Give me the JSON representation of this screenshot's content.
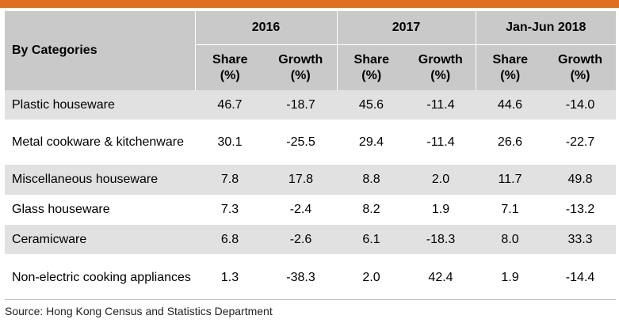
{
  "colors": {
    "accent": "#e07020",
    "header_bg": "#c9c9c9",
    "row_shade": "#e1e1e1"
  },
  "header": {
    "category_label": "By Categories",
    "years": [
      "2016",
      "2017",
      "Jan-Jun 2018"
    ],
    "share_label": "Share",
    "growth_label": "Growth",
    "unit_label": "(%)"
  },
  "rows": [
    {
      "label": "Plastic houseware",
      "values": [
        "46.7",
        "-18.7",
        "45.6",
        "-11.4",
        "44.6",
        "-14.0"
      ]
    },
    {
      "label": "Metal cookware & kitchenware",
      "values": [
        "30.1",
        "-25.5",
        "29.4",
        "-11.4",
        "26.6",
        "-22.7"
      ]
    },
    {
      "label": "Miscellaneous houseware",
      "values": [
        "7.8",
        "17.8",
        "8.8",
        "2.0",
        "11.7",
        "49.8"
      ]
    },
    {
      "label": "Glass houseware",
      "values": [
        "7.3",
        "-2.4",
        "8.2",
        "1.9",
        "7.1",
        "-13.2"
      ]
    },
    {
      "label": "Ceramicware",
      "values": [
        "6.8",
        "-2.6",
        "6.1",
        "-18.3",
        "8.0",
        "33.3"
      ]
    },
    {
      "label": "Non-electric cooking appliances",
      "values": [
        "1.3",
        "-38.3",
        "2.0",
        "42.4",
        "1.9",
        "-14.4"
      ]
    }
  ],
  "source": "Source: Hong Kong Census and Statistics Department"
}
